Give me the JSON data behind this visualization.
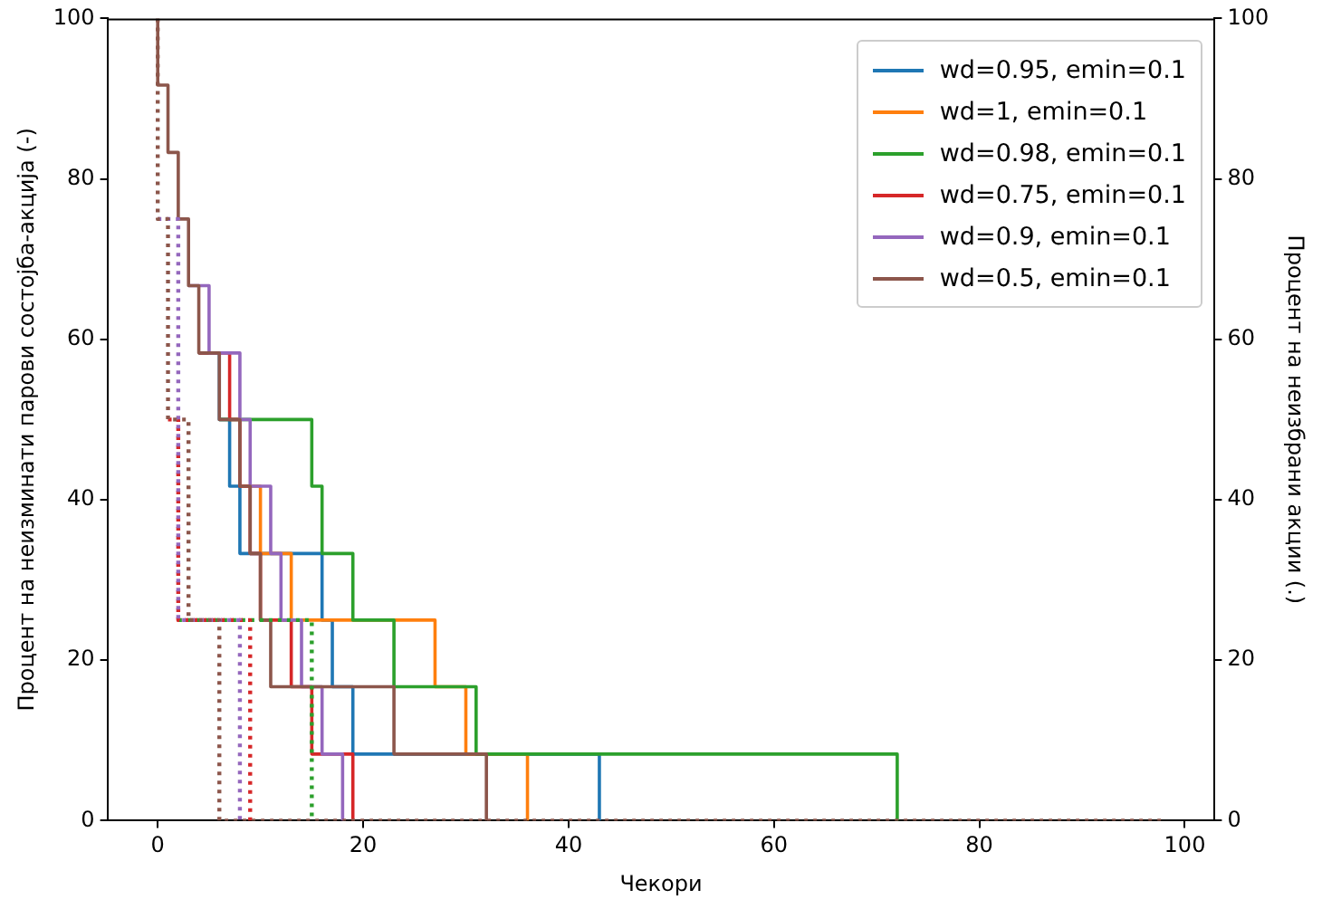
{
  "chart_data": {
    "type": "step",
    "xlabel": "Чекори",
    "ylabel": "Процент на неизминати парови состојба-акција (-)",
    "y2label": "Процент на неизбрани акции (.)",
    "xlim": [
      -4.9,
      102.9
    ],
    "xticks": [
      0,
      20,
      40,
      60,
      80,
      100
    ],
    "ylim": [
      0,
      100
    ],
    "yticks": [
      0,
      20,
      40,
      60,
      80,
      100
    ],
    "y2lim": [
      0,
      100
    ],
    "y2ticks": [
      0,
      20,
      40,
      60,
      80,
      100
    ],
    "grid": false,
    "legend": "top right",
    "series": [
      {
        "name": "wd=0.95, emin=0.1",
        "color": "#1f77b4",
        "line_style": "solid",
        "x": [
          4,
          6,
          7,
          8,
          16,
          17,
          19,
          43
        ],
        "values": [
          58.3,
          50,
          41.7,
          33.3,
          25,
          16.7,
          8.3,
          0
        ]
      },
      {
        "name": "wd=1, emin=0.1",
        "color": "#ff7f0e",
        "line_style": "solid",
        "x": [
          8,
          10,
          13,
          27,
          30,
          36
        ],
        "values": [
          41.7,
          33.3,
          25,
          16.7,
          8.3,
          0
        ]
      },
      {
        "name": "wd=0.98, emin=0.1",
        "color": "#2ca02c",
        "line_style": "solid",
        "x": [
          6,
          15,
          16,
          19,
          23,
          31,
          72
        ],
        "values": [
          50,
          41.7,
          33.3,
          25,
          16.7,
          8.3,
          0
        ]
      },
      {
        "name": "wd=0.75, emin=0.1",
        "color": "#d62728",
        "line_style": "solid",
        "x": [
          4,
          7,
          8,
          9,
          10,
          13,
          15,
          19
        ],
        "values": [
          58.3,
          50,
          41.7,
          33.3,
          25,
          16.7,
          8.3,
          0
        ]
      },
      {
        "name": "wd=0.9, emin=0.1",
        "color": "#9467bd",
        "line_style": "solid",
        "x": [
          3,
          5,
          8,
          9,
          11,
          12,
          14,
          16,
          18
        ],
        "values": [
          66.7,
          58.3,
          50,
          41.7,
          33.3,
          25,
          16.7,
          8.3,
          0
        ]
      },
      {
        "name": "wd=0.5, emin=0.1",
        "color": "#8c564b",
        "line_style": "solid",
        "x": [
          0,
          0,
          1,
          2,
          3,
          4,
          6,
          8,
          9,
          10,
          11,
          23,
          32
        ],
        "values": [
          100,
          91.7,
          83.3,
          75,
          66.7,
          58.3,
          50,
          41.7,
          33.3,
          25,
          16.7,
          8.3,
          0
        ]
      },
      {
        "color": "#2ca02c",
        "line_style": "dotted",
        "axis": "y2",
        "x": [
          2,
          15
        ],
        "values": [
          25,
          0
        ]
      },
      {
        "color": "#d62728",
        "line_style": "dotted",
        "axis": "y2",
        "x": [
          1,
          2,
          9
        ],
        "values": [
          50,
          25,
          0
        ]
      },
      {
        "color": "#9467bd",
        "line_style": "dotted",
        "axis": "y2",
        "x": [
          0,
          2,
          2,
          8
        ],
        "values": [
          75,
          50,
          25,
          0
        ]
      },
      {
        "color": "#8c564b",
        "line_style": "dotted",
        "axis": "y2",
        "x": [
          0,
          0,
          1,
          3,
          6,
          98
        ],
        "values": [
          100,
          75,
          50,
          25,
          0,
          0
        ]
      }
    ]
  }
}
